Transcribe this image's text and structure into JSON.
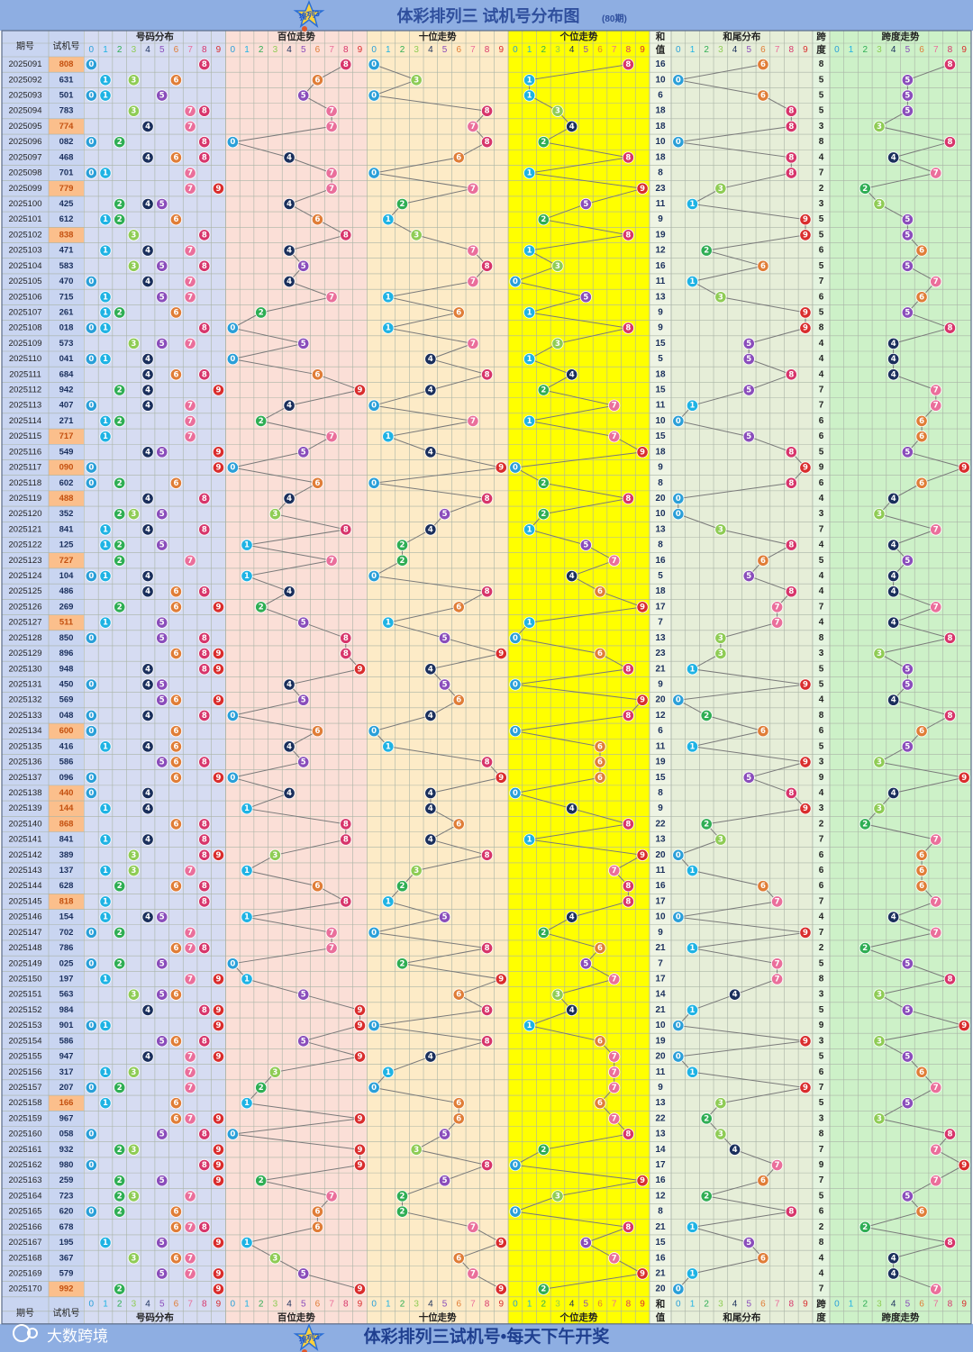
{
  "header": {
    "title": "体彩排列三 试机号分布图",
    "period_note": "(80期)",
    "logo_text": "排列3"
  },
  "footer": {
    "brand": "大数跨境",
    "slogan": "体彩排列三试机号•每天下午开奖",
    "logo_text": "排列3"
  },
  "chart_data": {
    "type": "table",
    "columns": {
      "issue": "期号",
      "number": "试机号",
      "distribution": "号码分布",
      "hundreds": "百位走势",
      "tens": "十位走势",
      "units": "个位走势",
      "sum_label": [
        "和",
        "值"
      ],
      "sum_tail": "和尾分布",
      "span_label": [
        "跨",
        "度"
      ],
      "span_trend": "跨度走势"
    },
    "digit_headers": [
      "0",
      "1",
      "2",
      "3",
      "4",
      "5",
      "6",
      "7",
      "8",
      "9"
    ],
    "issues": [
      "2025091",
      "2025092",
      "2025093",
      "2025094",
      "2025095",
      "2025096",
      "2025097",
      "2025098",
      "2025099",
      "2025100",
      "2025101",
      "2025102",
      "2025103",
      "2025104",
      "2025105",
      "2025106",
      "2025107",
      "2025108",
      "2025109",
      "2025110",
      "2025111",
      "2025112",
      "2025113",
      "2025114",
      "2025115",
      "2025116",
      "2025117",
      "2025118",
      "2025119",
      "2025120",
      "2025121",
      "2025122",
      "2025123",
      "2025124",
      "2025125",
      "2025126",
      "2025127",
      "2025128",
      "2025129",
      "2025130",
      "2025131",
      "2025132",
      "2025133",
      "2025134",
      "2025135",
      "2025136",
      "2025137",
      "2025138",
      "2025139",
      "2025140",
      "2025141",
      "2025142",
      "2025143",
      "2025144",
      "2025145",
      "2025146",
      "2025147",
      "2025148",
      "2025149",
      "2025150",
      "2025151",
      "2025152",
      "2025153",
      "2025154",
      "2025155",
      "2025156",
      "2025157",
      "2025158",
      "2025159",
      "2025160",
      "2025161",
      "2025162",
      "2025163",
      "2025164",
      "2025165",
      "2025166",
      "2025167",
      "2025168",
      "2025169",
      "2025170"
    ],
    "numbers": [
      "808",
      "631",
      "501",
      "783",
      "774",
      "082",
      "468",
      "701",
      "779",
      "425",
      "612",
      "838",
      "471",
      "583",
      "470",
      "715",
      "261",
      "018",
      "573",
      "041",
      "684",
      "942",
      "407",
      "271",
      "717",
      "549",
      "090",
      "602",
      "488",
      "352",
      "841",
      "125",
      "727",
      "104",
      "486",
      "269",
      "511",
      "850",
      "896",
      "948",
      "450",
      "569",
      "048",
      "600",
      "416",
      "586",
      "096",
      "440",
      "144",
      "868",
      "841",
      "389",
      "137",
      "628",
      "818",
      "154",
      "702",
      "786",
      "025",
      "197",
      "563",
      "984",
      "901",
      "586",
      "947",
      "317",
      "207",
      "166",
      "967",
      "058",
      "932",
      "980",
      "259",
      "723",
      "620",
      "678",
      "195",
      "367",
      "579",
      "992"
    ],
    "sums": [
      16,
      10,
      6,
      18,
      18,
      10,
      18,
      8,
      23,
      11,
      9,
      19,
      12,
      16,
      11,
      13,
      9,
      9,
      15,
      5,
      18,
      15,
      11,
      10,
      15,
      18,
      9,
      8,
      20,
      10,
      13,
      8,
      16,
      5,
      18,
      17,
      7,
      13,
      23,
      21,
      9,
      20,
      12,
      6,
      11,
      19,
      15,
      8,
      9,
      22,
      13,
      20,
      11,
      16,
      17,
      10,
      9,
      21,
      7,
      17,
      14,
      21,
      10,
      19,
      20,
      11,
      9,
      13,
      22,
      13,
      14,
      17,
      16,
      12,
      8,
      21,
      15,
      16,
      21,
      20
    ],
    "spans": [
      8,
      5,
      5,
      5,
      3,
      8,
      4,
      7,
      2,
      3,
      5,
      5,
      6,
      5,
      7,
      6,
      5,
      8,
      4,
      4,
      4,
      7,
      7,
      6,
      6,
      5,
      9,
      6,
      4,
      3,
      7,
      4,
      5,
      4,
      4,
      7,
      4,
      8,
      3,
      5,
      5,
      4,
      8,
      6,
      5,
      3,
      9,
      4,
      3,
      2,
      7,
      6,
      6,
      6,
      7,
      4,
      7,
      2,
      5,
      8,
      3,
      5,
      9,
      3,
      5,
      6,
      7,
      5,
      3,
      8,
      7,
      9,
      7,
      5,
      6,
      2,
      8,
      4,
      4,
      7
    ]
  },
  "colors": {
    "digits": [
      "#2a9fd8",
      "#1fb3e4",
      "#2fae54",
      "#8fcc55",
      "#1a2f5c",
      "#8a4dbb",
      "#e07d37",
      "#ea6f9b",
      "#d7356b",
      "#d92d2d"
    ],
    "issue_bg": "#c9d5f1",
    "hundreds_bg": "#fbdfd7",
    "tens_bg": "#fdebc7",
    "units_bg": "#ffff00",
    "sum_tail_bg": "#e6eed8",
    "span_bg": "#cdf1c8",
    "banner_bg": "#8eaee2",
    "header_text": "#2f4f9d",
    "highlight_row": "#fbbf8c",
    "line": "#7a7a7a",
    "grid": "#a9b3a6"
  }
}
